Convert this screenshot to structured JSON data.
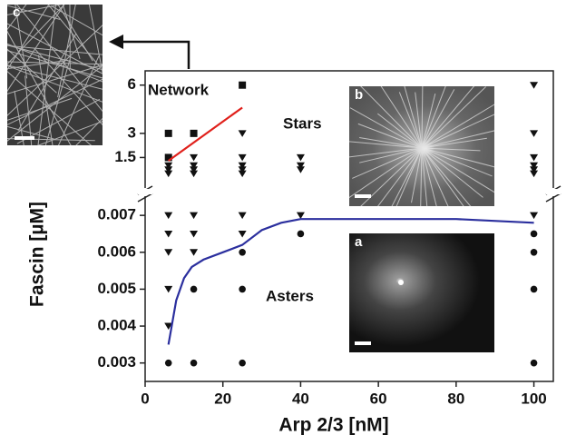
{
  "insets": [
    "a",
    "b",
    "c"
  ],
  "chart_data": [
    {
      "type": "scatter",
      "annotations": [
        "Network",
        "Stars"
      ],
      "xlim": [
        0,
        105
      ],
      "ylim": [
        0,
        7
      ],
      "yticks": [
        1.5,
        3,
        6
      ],
      "series": [
        {
          "marker": "square",
          "color": "#111111",
          "x": [
            6,
            6,
            12.5,
            25
          ],
          "values": [
            3,
            1.5,
            3,
            6
          ]
        },
        {
          "marker": "triangle",
          "color": "#111111",
          "x": [
            6,
            6,
            6,
            12.5,
            12.5,
            12.5,
            12.5,
            25,
            25,
            25,
            25,
            25,
            40,
            40,
            40,
            100,
            100,
            100,
            100,
            100,
            100
          ],
          "values": [
            1.0,
            0.75,
            0.5,
            1.5,
            1.0,
            0.75,
            0.5,
            3,
            1.5,
            1.0,
            0.75,
            0.5,
            1.5,
            1.0,
            0.75,
            6,
            3,
            1.5,
            1.0,
            0.75,
            0.5
          ]
        },
        {
          "marker": "line",
          "color": "#e0201b",
          "x": [
            6,
            25
          ],
          "values": [
            1.3,
            4.6
          ]
        }
      ]
    },
    {
      "type": "scatter",
      "annotations": [
        "Asters"
      ],
      "xlabel": "Arp 2/3 [nM]",
      "ylabel": "Fascin [µM]",
      "xlim": [
        0,
        105
      ],
      "xticks": [
        0,
        20,
        40,
        60,
        80,
        100
      ],
      "ylim": [
        0.0025,
        0.00725
      ],
      "yticks": [
        0.003,
        0.004,
        0.005,
        0.006,
        0.007
      ],
      "series": [
        {
          "marker": "triangle",
          "color": "#111111",
          "x": [
            6,
            6,
            6,
            6,
            6,
            12.5,
            12.5,
            12.5,
            25,
            25,
            40,
            100
          ],
          "values": [
            0.007,
            0.0065,
            0.006,
            0.005,
            0.004,
            0.007,
            0.0065,
            0.006,
            0.007,
            0.0065,
            0.007,
            0.007
          ]
        },
        {
          "marker": "circle",
          "color": "#111111",
          "x": [
            6,
            12.5,
            12.5,
            25,
            25,
            25,
            40,
            100,
            100,
            100,
            100
          ],
          "values": [
            0.003,
            0.005,
            0.003,
            0.006,
            0.005,
            0.003,
            0.0065,
            0.0065,
            0.006,
            0.005,
            0.003
          ]
        },
        {
          "marker": "line",
          "color": "#2b2f9e",
          "x": [
            6,
            8,
            10,
            12,
            15,
            20,
            25,
            30,
            35,
            40,
            60,
            80,
            100
          ],
          "values": [
            0.0035,
            0.0047,
            0.0053,
            0.0056,
            0.0058,
            0.006,
            0.0062,
            0.0066,
            0.0068,
            0.0069,
            0.0069,
            0.0069,
            0.0068
          ]
        }
      ]
    }
  ]
}
